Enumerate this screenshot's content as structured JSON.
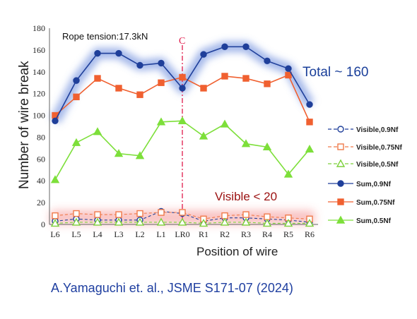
{
  "chart_data": {
    "type": "line",
    "xlabel": "Position of wire",
    "ylabel": "Number of wire break",
    "categories": [
      "L6",
      "L5",
      "L4",
      "L3",
      "L2",
      "L1",
      "LR0",
      "R1",
      "R2",
      "R3",
      "R4",
      "R5",
      "R6"
    ],
    "ylim": [
      0,
      180
    ],
    "yticks": [
      0,
      20,
      40,
      60,
      80,
      100,
      120,
      140,
      160,
      180
    ],
    "grid": false,
    "legend_position": "right",
    "series": [
      {
        "name": "Visible,0.9Nf",
        "color": "#1f3f9a",
        "marker": "circle-open",
        "style": "dashed",
        "values": [
          3,
          5,
          4,
          4,
          4,
          12,
          10,
          3,
          6,
          6,
          5,
          4,
          2
        ]
      },
      {
        "name": "Visible,0.75Nf",
        "color": "#f07a4a",
        "marker": "square-open",
        "style": "dashed",
        "values": [
          8,
          10,
          9,
          9,
          10,
          11,
          11,
          5,
          8,
          9,
          7,
          6,
          5
        ]
      },
      {
        "name": "Visible,0.5Nf",
        "color": "#7cd13a",
        "marker": "triangle-open",
        "style": "dashed",
        "values": [
          1,
          2,
          2,
          2,
          2,
          2,
          2,
          1,
          2,
          2,
          1,
          1,
          1
        ]
      },
      {
        "name": "Sum,0.9Nf",
        "color": "#1f3f9a",
        "marker": "circle",
        "style": "solid",
        "values": [
          95,
          132,
          157,
          157,
          146,
          148,
          125,
          156,
          163,
          163,
          150,
          143,
          110
        ]
      },
      {
        "name": "Sum,0.75Nf",
        "color": "#f06030",
        "marker": "square",
        "style": "solid",
        "values": [
          100,
          117,
          134,
          125,
          119,
          130,
          135,
          125,
          136,
          134,
          129,
          137,
          94
        ]
      },
      {
        "name": "Sum,0.5Nf",
        "color": "#7ddf3a",
        "marker": "triangle",
        "style": "solid",
        "values": [
          41,
          75,
          85,
          65,
          63,
          94,
          95,
          81,
          92,
          74,
          71,
          46,
          69
        ]
      }
    ],
    "annotations": {
      "tension": "Rope tension:17.3kN",
      "center_mark": "C",
      "total": "Total ~ 160",
      "visible": "Visible < 20"
    }
  },
  "citation": "A.Yamaguchi et. al., JSME  S171-07 (2024)"
}
